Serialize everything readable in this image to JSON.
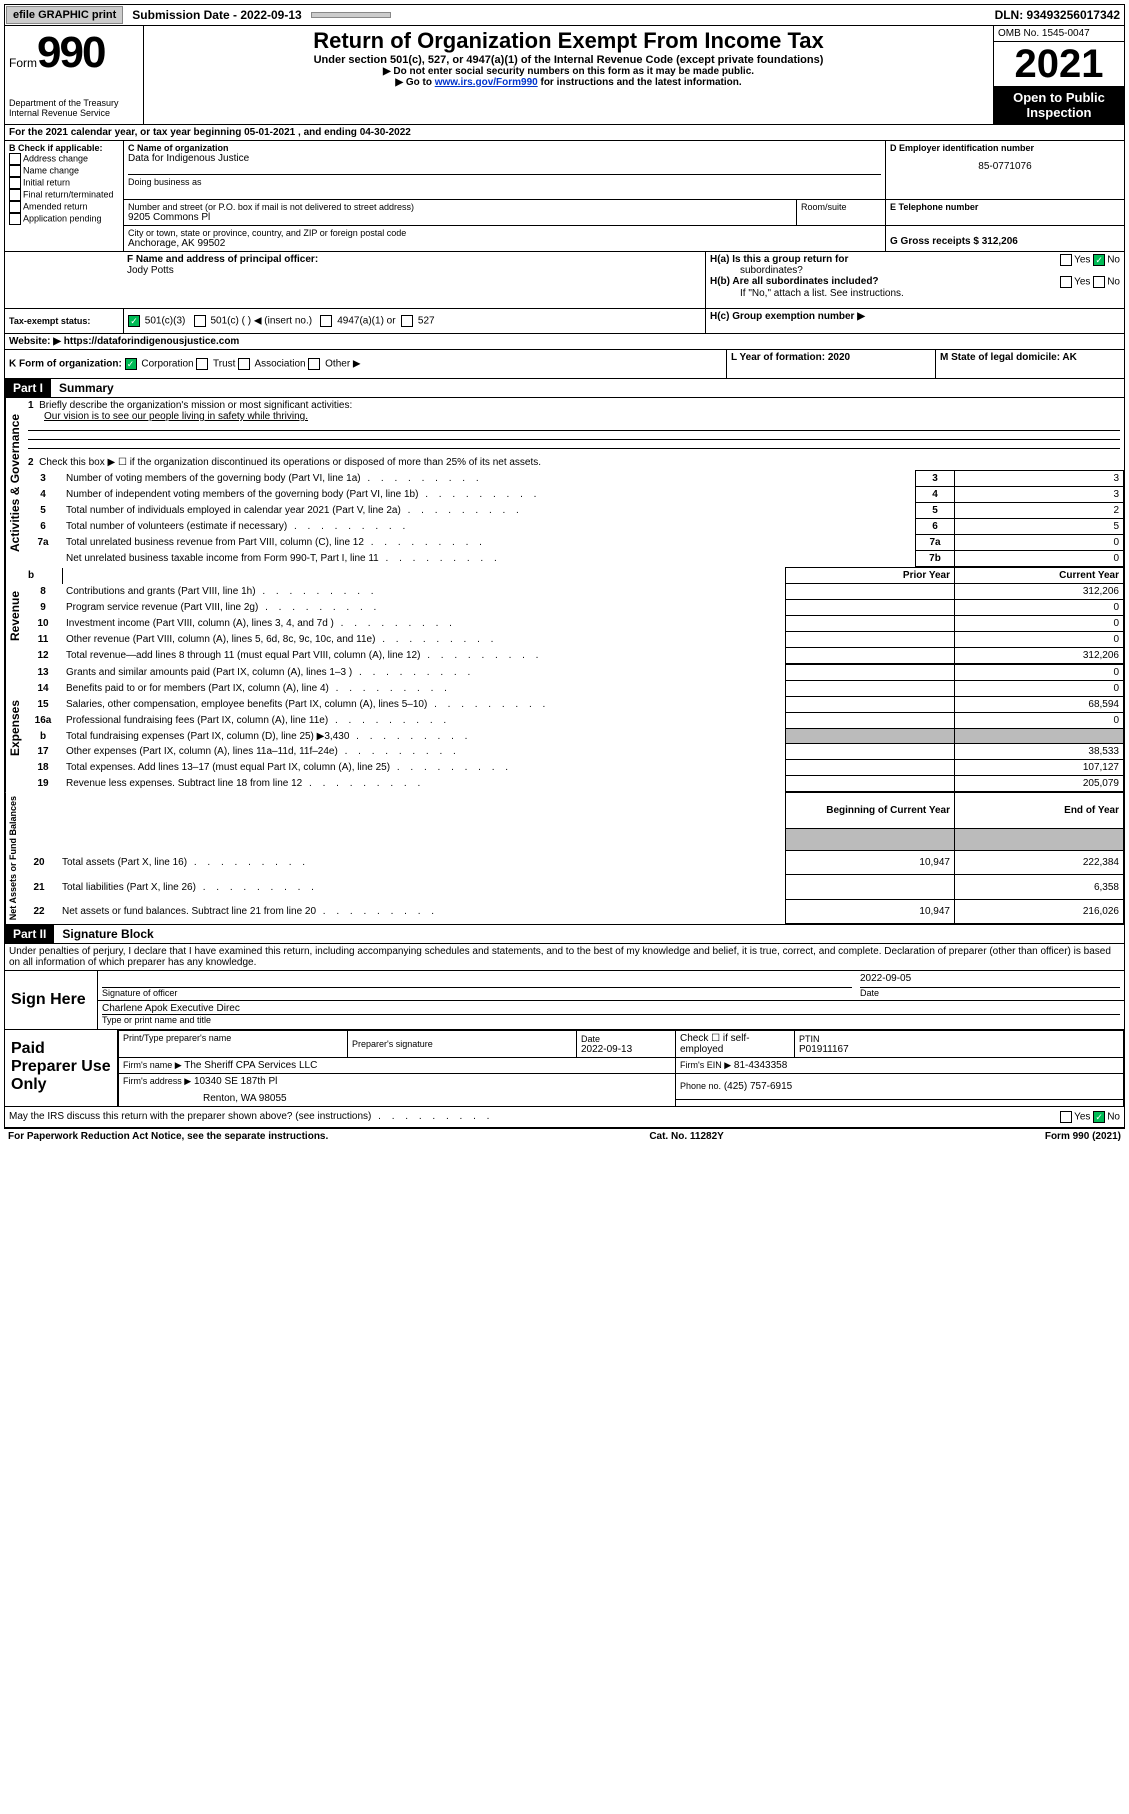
{
  "topbar": {
    "efile": "efile GRAPHIC print",
    "submission_label": "Submission Date - 2022-09-13",
    "dln_label": "DLN: 93493256017342"
  },
  "header": {
    "form_word": "Form",
    "form_num": "990",
    "dept": "Department of the Treasury",
    "irs": "Internal Revenue Service",
    "title": "Return of Organization Exempt From Income Tax",
    "sub": "Under section 501(c), 527, or 4947(a)(1) of the Internal Revenue Code (except private foundations)",
    "note1": "▶ Do not enter social security numbers on this form as it may be made public.",
    "note2_pre": "▶ Go to ",
    "note2_link": "www.irs.gov/Form990",
    "note2_post": " for instructions and the latest information.",
    "omb": "OMB No. 1545-0047",
    "year": "2021",
    "open1": "Open to Public",
    "open2": "Inspection"
  },
  "lineA": "For the 2021 calendar year, or tax year beginning 05-01-2021   , and ending 04-30-2022",
  "boxB": {
    "title": "B Check if applicable:",
    "items": [
      "Address change",
      "Name change",
      "Initial return",
      "Final return/terminated",
      "Amended return",
      "Application pending"
    ]
  },
  "boxC": {
    "name_lbl": "C Name of organization",
    "name": "Data for Indigenous Justice",
    "dba_lbl": "Doing business as",
    "addr_lbl": "Number and street (or P.O. box if mail is not delivered to street address)",
    "room_lbl": "Room/suite",
    "addr": "9205 Commons Pl",
    "city_lbl": "City or town, state or province, country, and ZIP or foreign postal code",
    "city": "Anchorage, AK  99502"
  },
  "boxD": {
    "lbl": "D Employer identification number",
    "val": "85-0771076"
  },
  "boxE": {
    "lbl": "E Telephone number"
  },
  "boxG": {
    "lbl": "G Gross receipts $ 312,206"
  },
  "boxF": {
    "lbl": "F  Name and address of principal officer:",
    "val": "Jody Potts"
  },
  "boxH": {
    "a": "H(a)  Is this a group return for",
    "a2": "subordinates?",
    "b": "H(b)  Are all subordinates included?",
    "b2": "If \"No,\" attach a list. See instructions.",
    "c": "H(c)  Group exemption number ▶",
    "yes": "Yes",
    "no": "No"
  },
  "boxI": {
    "lbl": "Tax-exempt status:",
    "o1": "501(c)(3)",
    "o2": "501(c) (  ) ◀ (insert no.)",
    "o3": "4947(a)(1) or",
    "o4": "527"
  },
  "boxJ": {
    "lbl": "Website: ▶",
    "val": "https://dataforindigenousjustice.com"
  },
  "boxK": {
    "lbl": "K Form of organization:",
    "o1": "Corporation",
    "o2": "Trust",
    "o3": "Association",
    "o4": "Other ▶"
  },
  "boxL": {
    "lbl": "L Year of formation: 2020"
  },
  "boxM": {
    "lbl": "M State of legal domicile: AK"
  },
  "part1": {
    "hdr": "Part I",
    "title": "Summary",
    "l1": "Briefly describe the organization's mission or most significant activities:",
    "l1v": "Our vision is to see our people living in safety while thriving.",
    "l2": "Check this box ▶ ☐  if the organization discontinued its operations or disposed of more than 25% of its net assets.",
    "rows_gov": [
      {
        "n": "3",
        "t": "Number of voting members of the governing body (Part VI, line 1a)",
        "k": "3",
        "v": "3"
      },
      {
        "n": "4",
        "t": "Number of independent voting members of the governing body (Part VI, line 1b)",
        "k": "4",
        "v": "3"
      },
      {
        "n": "5",
        "t": "Total number of individuals employed in calendar year 2021 (Part V, line 2a)",
        "k": "5",
        "v": "2"
      },
      {
        "n": "6",
        "t": "Total number of volunteers (estimate if necessary)",
        "k": "6",
        "v": "5"
      },
      {
        "n": "7a",
        "t": "Total unrelated business revenue from Part VIII, column (C), line 12",
        "k": "7a",
        "v": "0"
      },
      {
        "n": "",
        "t": "Net unrelated business taxable income from Form 990-T, Part I, line 11",
        "k": "7b",
        "v": "0"
      }
    ],
    "py": "Prior Year",
    "cy": "Current Year",
    "rows_rev": [
      {
        "n": "8",
        "t": "Contributions and grants (Part VIII, line 1h)",
        "py": "",
        "cy": "312,206"
      },
      {
        "n": "9",
        "t": "Program service revenue (Part VIII, line 2g)",
        "py": "",
        "cy": "0"
      },
      {
        "n": "10",
        "t": "Investment income (Part VIII, column (A), lines 3, 4, and 7d )",
        "py": "",
        "cy": "0"
      },
      {
        "n": "11",
        "t": "Other revenue (Part VIII, column (A), lines 5, 6d, 8c, 9c, 10c, and 11e)",
        "py": "",
        "cy": "0"
      },
      {
        "n": "12",
        "t": "Total revenue—add lines 8 through 11 (must equal Part VIII, column (A), line 12)",
        "py": "",
        "cy": "312,206"
      }
    ],
    "rows_exp": [
      {
        "n": "13",
        "t": "Grants and similar amounts paid (Part IX, column (A), lines 1–3 )",
        "py": "",
        "cy": "0"
      },
      {
        "n": "14",
        "t": "Benefits paid to or for members (Part IX, column (A), line 4)",
        "py": "",
        "cy": "0"
      },
      {
        "n": "15",
        "t": "Salaries, other compensation, employee benefits (Part IX, column (A), lines 5–10)",
        "py": "",
        "cy": "68,594"
      },
      {
        "n": "16a",
        "t": "Professional fundraising fees (Part IX, column (A), line 11e)",
        "py": "",
        "cy": "0"
      },
      {
        "n": "b",
        "t": "Total fundraising expenses (Part IX, column (D), line 25) ▶3,430",
        "py": "shade",
        "cy": "shade"
      },
      {
        "n": "17",
        "t": "Other expenses (Part IX, column (A), lines 11a–11d, 11f–24e)",
        "py": "",
        "cy": "38,533"
      },
      {
        "n": "18",
        "t": "Total expenses. Add lines 13–17 (must equal Part IX, column (A), line 25)",
        "py": "",
        "cy": "107,127"
      },
      {
        "n": "19",
        "t": "Revenue less expenses. Subtract line 18 from line 12",
        "py": "",
        "cy": "205,079"
      }
    ],
    "bcy": "Beginning of Current Year",
    "eoy": "End of Year",
    "rows_net": [
      {
        "n": "20",
        "t": "Total assets (Part X, line 16)",
        "py": "10,947",
        "cy": "222,384"
      },
      {
        "n": "21",
        "t": "Total liabilities (Part X, line 26)",
        "py": "",
        "cy": "6,358"
      },
      {
        "n": "22",
        "t": "Net assets or fund balances. Subtract line 21 from line 20",
        "py": "10,947",
        "cy": "216,026"
      }
    ],
    "vtext_gov": "Activities & Governance",
    "vtext_rev": "Revenue",
    "vtext_exp": "Expenses",
    "vtext_net": "Net Assets or Fund Balances"
  },
  "part2": {
    "hdr": "Part II",
    "title": "Signature Block",
    "decl": "Under penalties of perjury, I declare that I have examined this return, including accompanying schedules and statements, and to the best of my knowledge and belief, it is true, correct, and complete. Declaration of preparer (other than officer) is based on all information of which preparer has any knowledge.",
    "sign_here": "Sign Here",
    "sig_off": "Signature of officer",
    "sig_date": "Date",
    "sig_date_v": "2022-09-05",
    "name_title": "Charlene Apok  Executive Direc",
    "name_lbl": "Type or print name and title",
    "paid": "Paid Preparer Use Only",
    "p_name_lbl": "Print/Type preparer's name",
    "p_sig_lbl": "Preparer's signature",
    "p_date_lbl": "Date",
    "p_date": "2022-09-13",
    "p_check": "Check ☐ if self-employed",
    "ptin_lbl": "PTIN",
    "ptin": "P01911167",
    "firm_name_lbl": "Firm's name   ▶",
    "firm_name": "The Sheriff CPA Services LLC",
    "firm_ein_lbl": "Firm's EIN ▶",
    "firm_ein": "81-4343358",
    "firm_addr_lbl": "Firm's address ▶",
    "firm_addr": "10340 SE 187th Pl",
    "firm_addr2": "Renton, WA  98055",
    "phone_lbl": "Phone no.",
    "phone": "(425) 757-6915",
    "may": "May the IRS discuss this return with the preparer shown above? (see instructions)"
  },
  "footer": {
    "l": "For Paperwork Reduction Act Notice, see the separate instructions.",
    "m": "Cat. No. 11282Y",
    "r": "Form 990 (2021)"
  }
}
